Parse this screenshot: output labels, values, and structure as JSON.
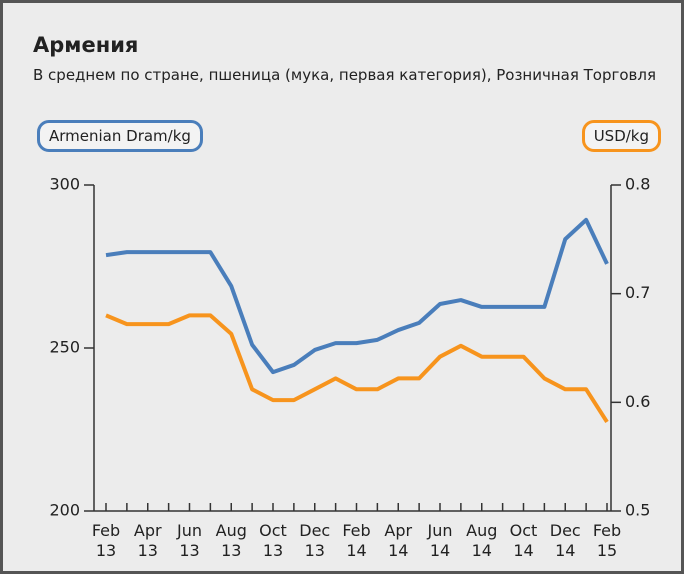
{
  "chart_data": {
    "type": "line",
    "title": "Армения",
    "subtitle": "В среднем по стране, пшеница (мука, первая категория), Розничная Торговля",
    "y_label": "Armenian Dram/kg",
    "y2_label": "USD/kg",
    "categories": [
      "Feb 13",
      null,
      "Apr 13",
      null,
      "Jun 13",
      null,
      "Aug 13",
      null,
      "Oct 13",
      null,
      "Dec 13",
      null,
      "Feb 14",
      null,
      "Apr 14",
      null,
      "Jun 14",
      null,
      "Aug 14",
      null,
      "Oct 14",
      null,
      "Dec 14",
      null,
      "Feb 15"
    ],
    "series": [
      {
        "name": "Armenian Dram/kg",
        "color": "#4a7ebb",
        "values": [
          278.5,
          279.4,
          279.4,
          279.4,
          279.4,
          279.4,
          269,
          251,
          242.6,
          244.8,
          249.4,
          251.5,
          251.5,
          252.5,
          255.5,
          257.7,
          263.5,
          264.7,
          262.6,
          262.6,
          262.6,
          262.6,
          283.4,
          289.3,
          275.8
        ]
      },
      {
        "name": "USD/kg",
        "color": "#f7941d",
        "axis": "y2",
        "values": [
          0.68,
          0.672,
          0.672,
          0.672,
          0.68,
          0.68,
          0.663,
          0.612,
          0.602,
          0.602,
          0.612,
          0.622,
          0.612,
          0.612,
          0.622,
          0.622,
          0.642,
          0.652,
          0.642,
          0.642,
          0.642,
          0.622,
          0.612,
          0.612,
          0.582
        ]
      }
    ],
    "ylim": [
      200,
      300
    ],
    "yticks": [
      200,
      250,
      300
    ],
    "y2lim": [
      0.5,
      0.8
    ],
    "y2ticks": [
      0.5,
      0.6,
      0.7,
      0.8
    ]
  }
}
